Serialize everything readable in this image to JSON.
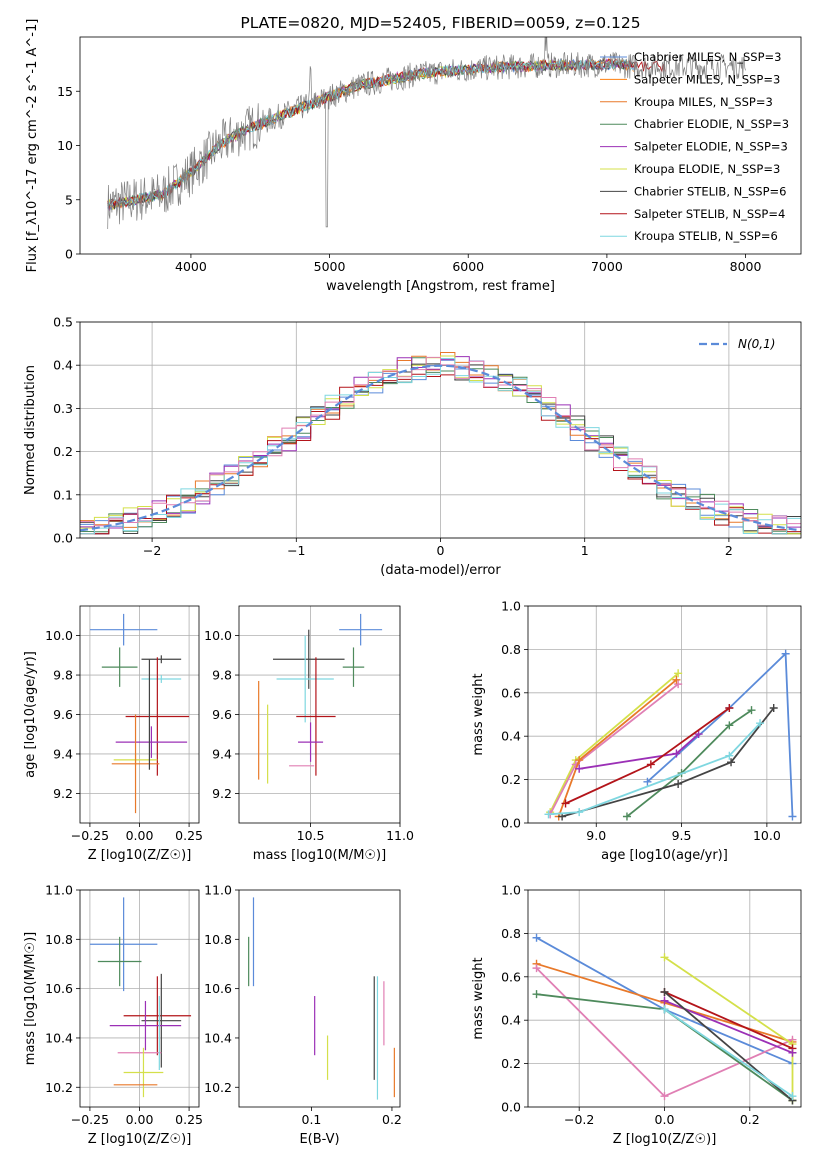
{
  "colors": {
    "chabrier_miles": "#5b8bd9",
    "salpeter_miles": "#ff7f0e",
    "kroupa_miles": "#e8792a",
    "chabrier_elodie": "#4e8a5c",
    "salpeter_elodie": "#9b30b6",
    "kroupa_elodie": "#d4e04a",
    "chabrier_stelib": "#444444",
    "salpeter_stelib": "#b3141a",
    "kroupa_stelib": "#7fd7e0",
    "pink": "#e07fb4",
    "normal_curve": "#5b8bd9"
  },
  "chart_data": [
    {
      "id": "spectrum",
      "type": "line",
      "title": "PLATE=0820, MJD=52405, FIBERID=0059, z=0.125",
      "xlabel": "wavelength [Angstrom, rest frame]",
      "ylabel": "Flux [f_λ10^-17 erg cm^-2 s^-1 A^-1]",
      "xlim": [
        3200,
        8400
      ],
      "ylim": [
        0,
        20
      ],
      "xticks": [
        "4000",
        "5000",
        "6000",
        "7000",
        "8000"
      ],
      "yticks": [
        "0",
        "5",
        "10",
        "15"
      ],
      "legend": [
        "Chabrier MILES, N_SSP=3",
        "Salpeter MILES, N_SSP=3",
        "Kroupa MILES, N_SSP=3",
        "Chabrier ELODIE, N_SSP=3",
        "Salpeter ELODIE, N_SSP=3",
        "Kroupa ELODIE, N_SSP=3",
        "Chabrier STELIB, N_SSP=6",
        "Salpeter STELIB, N_SSP=4",
        "Kroupa STELIB, N_SSP=6"
      ],
      "legend_position": "right",
      "continuum": [
        [
          3400,
          4.5
        ],
        [
          3600,
          5
        ],
        [
          3800,
          5.5
        ],
        [
          4000,
          7.5
        ],
        [
          4200,
          10
        ],
        [
          4400,
          11.5
        ],
        [
          4600,
          12.5
        ],
        [
          4800,
          13.5
        ],
        [
          5000,
          14.5
        ],
        [
          5200,
          15.5
        ],
        [
          5400,
          16
        ],
        [
          5600,
          16.5
        ],
        [
          5800,
          16.8
        ],
        [
          6000,
          17
        ],
        [
          6200,
          17.2
        ],
        [
          6400,
          17.3
        ],
        [
          6600,
          17.4
        ],
        [
          6800,
          17.4
        ],
        [
          7000,
          17.5
        ],
        [
          7200,
          17.3
        ]
      ]
    },
    {
      "id": "residuals",
      "type": "histogram",
      "xlabel": "(data-model)/error",
      "ylabel": "Normed distribution",
      "xlim": [
        -2.5,
        2.5
      ],
      "ylim": [
        0,
        0.5
      ],
      "xticks": [
        "−2",
        "−1",
        "0",
        "1",
        "2"
      ],
      "yticks": [
        "0.0",
        "0.1",
        "0.2",
        "0.3",
        "0.4",
        "0.5"
      ],
      "legend": [
        "N(0,1)"
      ],
      "legend_position": "top-right",
      "grid": true
    },
    {
      "id": "age_vs_Z",
      "type": "errorbar",
      "xlabel": "Z [log10(Z/Z☉)]",
      "ylabel": "age  [log10(age/yr)]",
      "xlim": [
        -0.3,
        0.3
      ],
      "ylim": [
        9.05,
        10.15
      ],
      "xticks": [
        "−0.25",
        "0.00",
        "0.25"
      ],
      "yticks": [
        "9.2",
        "9.4",
        "9.6",
        "9.8",
        "10.0"
      ],
      "grid": true,
      "points": [
        {
          "c": "chabrier_miles",
          "x": -0.08,
          "y": 10.03,
          "xe": 0.17,
          "ye": 0.08
        },
        {
          "c": "chabrier_elodie",
          "x": -0.1,
          "y": 9.84,
          "xe": 0.09,
          "ye": 0.1
        },
        {
          "c": "chabrier_stelib",
          "x": 0.11,
          "y": 9.88,
          "xe": 0.1,
          "ye": 0.02
        },
        {
          "c": "kroupa_stelib",
          "x": 0.11,
          "y": 9.78,
          "xe": 0.1,
          "ye": 0.02
        },
        {
          "c": "salpeter_stelib",
          "x": 0.09,
          "y": 9.59,
          "xe": 0.16,
          "ye": 0.3
        },
        {
          "c": "salpeter_elodie",
          "x": 0.06,
          "y": 9.46,
          "xe": 0.18,
          "ye": 0.08
        },
        {
          "c": "kroupa_elodie",
          "x": -0.02,
          "y": 9.37,
          "xe": 0.11,
          "ye": 0.03
        },
        {
          "c": "kroupa_miles",
          "x": -0.02,
          "y": 9.35,
          "xe": 0.12,
          "ye": 0.25
        },
        {
          "c": "chabrier_stelib",
          "x": 0.05,
          "y": 9.6,
          "xe": 0.0,
          "ye": 0.28
        }
      ]
    },
    {
      "id": "age_vs_mass",
      "type": "errorbar",
      "xlabel": "mass [log10(M/M☉)]",
      "ylabel": "",
      "xlim": [
        10.1,
        11.0
      ],
      "ylim": [
        9.05,
        10.15
      ],
      "xticks": [
        "10.5",
        "11.0"
      ],
      "yticks": [
        "9.2",
        "9.4",
        "9.6",
        "9.8",
        "10.0"
      ],
      "grid": true,
      "points": [
        {
          "c": "chabrier_miles",
          "x": 10.78,
          "y": 10.03,
          "xe": 0.12,
          "ye": 0.08
        },
        {
          "c": "chabrier_elodie",
          "x": 10.74,
          "y": 9.84,
          "xe": 0.06,
          "ye": 0.1
        },
        {
          "c": "chabrier_stelib",
          "x": 10.49,
          "y": 9.88,
          "xe": 0.2,
          "ye": 0.15
        },
        {
          "c": "kroupa_stelib",
          "x": 10.47,
          "y": 9.78,
          "xe": 0.16,
          "ye": 0.22
        },
        {
          "c": "salpeter_stelib",
          "x": 10.53,
          "y": 9.59,
          "xe": 0.11,
          "ye": 0.3
        },
        {
          "c": "salpeter_elodie",
          "x": 10.5,
          "y": 9.46,
          "xe": 0.07,
          "ye": 0.1
        },
        {
          "c": "kroupa_miles",
          "x": 10.21,
          "y": 9.52,
          "xe": 0.0,
          "ye": 0.25
        },
        {
          "c": "kroupa_elodie",
          "x": 10.26,
          "y": 9.45,
          "xe": 0.0,
          "ye": 0.2
        },
        {
          "c": "pink",
          "x": 10.45,
          "y": 9.34,
          "xe": 0.07,
          "ye": 0.0
        }
      ]
    },
    {
      "id": "massweight_vs_age",
      "type": "line",
      "xlabel": "age  [log10(age/yr)]",
      "ylabel": "mass weight",
      "xlim": [
        8.6,
        10.2
      ],
      "ylim": [
        0,
        1.0
      ],
      "xticks": [
        "9.0",
        "9.5",
        "10.0"
      ],
      "yticks": [
        "0.0",
        "0.2",
        "0.4",
        "0.6",
        "0.8",
        "1.0"
      ],
      "grid": true,
      "series": [
        {
          "c": "chabrier_miles",
          "x": [
            9.3,
            9.78,
            10.11,
            10.15
          ],
          "y": [
            0.19,
            0.53,
            0.78,
            0.03
          ]
        },
        {
          "c": "kroupa_elodie",
          "x": [
            8.73,
            8.88,
            9.48
          ],
          "y": [
            0.05,
            0.29,
            0.69
          ]
        },
        {
          "c": "pink",
          "x": [
            8.73,
            8.88,
            9.48
          ],
          "y": [
            0.04,
            0.27,
            0.64
          ]
        },
        {
          "c": "kroupa_miles",
          "x": [
            8.78,
            8.9,
            9.47
          ],
          "y": [
            0.03,
            0.29,
            0.66
          ]
        },
        {
          "c": "salpeter_elodie",
          "x": [
            8.9,
            9.47,
            9.6
          ],
          "y": [
            0.25,
            0.32,
            0.41
          ]
        },
        {
          "c": "salpeter_stelib",
          "x": [
            8.82,
            9.32,
            9.78
          ],
          "y": [
            0.09,
            0.27,
            0.53
          ]
        },
        {
          "c": "chabrier_elodie",
          "x": [
            9.18,
            9.5,
            9.78,
            9.91
          ],
          "y": [
            0.03,
            0.23,
            0.45,
            0.52
          ]
        },
        {
          "c": "chabrier_stelib",
          "x": [
            8.8,
            9.48,
            9.79,
            10.04
          ],
          "y": [
            0.03,
            0.18,
            0.28,
            0.53
          ]
        },
        {
          "c": "kroupa_stelib",
          "x": [
            8.72,
            8.9,
            9.78,
            9.96
          ],
          "y": [
            0.04,
            0.05,
            0.31,
            0.46
          ]
        }
      ]
    },
    {
      "id": "mass_vs_Z",
      "type": "errorbar",
      "xlabel": "Z [log10(Z/Z☉)]",
      "ylabel": "mass [log10(M/M☉)]",
      "xlim": [
        -0.3,
        0.3
      ],
      "ylim": [
        10.12,
        11.0
      ],
      "xticks": [
        "−0.25",
        "0.00",
        "0.25"
      ],
      "yticks": [
        "10.2",
        "10.4",
        "10.6",
        "10.8",
        "11.0"
      ],
      "grid": true,
      "points": [
        {
          "c": "chabrier_miles",
          "x": -0.08,
          "y": 10.78,
          "xe": 0.17,
          "ye": 0.19
        },
        {
          "c": "chabrier_elodie",
          "x": -0.1,
          "y": 10.71,
          "xe": 0.11,
          "ye": 0.1
        },
        {
          "c": "salpeter_stelib",
          "x": 0.09,
          "y": 10.49,
          "xe": 0.17,
          "ye": 0.16
        },
        {
          "c": "chabrier_stelib",
          "x": 0.11,
          "y": 10.47,
          "xe": 0.1,
          "ye": 0.19
        },
        {
          "c": "salpeter_elodie",
          "x": 0.03,
          "y": 10.45,
          "xe": 0.18,
          "ye": 0.1
        },
        {
          "c": "pink",
          "x": 0.0,
          "y": 10.34,
          "xe": 0.11,
          "ye": 0.0
        },
        {
          "c": "kroupa_elodie",
          "x": 0.02,
          "y": 10.26,
          "xe": 0.1,
          "ye": 0.1
        },
        {
          "c": "kroupa_miles",
          "x": -0.02,
          "y": 10.21,
          "xe": 0.11,
          "ye": 0.0
        },
        {
          "c": "kroupa_stelib",
          "x": 0.1,
          "y": 10.42,
          "xe": 0.0,
          "ye": 0.15
        }
      ]
    },
    {
      "id": "mass_vs_ebv",
      "type": "errorbar",
      "xlabel": "E(B-V)",
      "ylabel": "",
      "xlim": [
        0.01,
        0.21
      ],
      "ylim": [
        10.12,
        11.0
      ],
      "xticks": [
        "0.1",
        "0.2"
      ],
      "yticks": [
        "10.2",
        "10.4",
        "10.6",
        "10.8",
        "11.0"
      ],
      "points": [
        {
          "c": "chabrier_miles",
          "x": 0.028,
          "y": 10.79,
          "xe": 0.0,
          "ye": 0.18
        },
        {
          "c": "chabrier_elodie",
          "x": 0.022,
          "y": 10.71,
          "xe": 0.0,
          "ye": 0.1
        },
        {
          "c": "salpeter_elodie",
          "x": 0.104,
          "y": 10.45,
          "xe": 0.0,
          "ye": 0.12
        },
        {
          "c": "kroupa_elodie",
          "x": 0.12,
          "y": 10.32,
          "xe": 0.0,
          "ye": 0.09
        },
        {
          "c": "chabrier_stelib",
          "x": 0.178,
          "y": 10.44,
          "xe": 0.0,
          "ye": 0.21
        },
        {
          "c": "kroupa_stelib",
          "x": 0.182,
          "y": 10.4,
          "xe": 0.0,
          "ye": 0.25
        },
        {
          "c": "pink",
          "x": 0.19,
          "y": 10.5,
          "xe": 0.0,
          "ye": 0.13
        },
        {
          "c": "kroupa_miles",
          "x": 0.203,
          "y": 10.26,
          "xe": 0.0,
          "ye": 0.1
        }
      ]
    },
    {
      "id": "massweight_vs_Z",
      "type": "line",
      "xlabel": "Z [log10(Z/Z☉)]",
      "ylabel": "mass weight",
      "xlim": [
        -0.32,
        0.32
      ],
      "ylim": [
        0,
        1.0
      ],
      "xticks": [
        "−0.2",
        "0.0",
        "0.2"
      ],
      "yticks": [
        "0.0",
        "0.2",
        "0.4",
        "0.6",
        "0.8",
        "1.0"
      ],
      "grid": true,
      "series": [
        {
          "c": "chabrier_miles",
          "x": [
            -0.3,
            0.0,
            0.3
          ],
          "y": [
            0.78,
            0.45,
            0.2
          ]
        },
        {
          "c": "kroupa_miles",
          "x": [
            -0.3,
            0.0,
            0.3
          ],
          "y": [
            0.66,
            0.48,
            0.3
          ]
        },
        {
          "c": "pink",
          "x": [
            -0.3,
            0.0,
            0.3
          ],
          "y": [
            0.64,
            0.05,
            0.31
          ]
        },
        {
          "c": "chabrier_elodie",
          "x": [
            -0.3,
            0.0,
            0.3
          ],
          "y": [
            0.52,
            0.45,
            0.03
          ]
        },
        {
          "c": "kroupa_elodie",
          "x": [
            0.0,
            0.3,
            0.3
          ],
          "y": [
            0.69,
            0.29,
            0.03
          ]
        },
        {
          "c": "salpeter_stelib",
          "x": [
            0.0,
            0.3
          ],
          "y": [
            0.53,
            0.27
          ]
        },
        {
          "c": "salpeter_elodie",
          "x": [
            0.0,
            0.3
          ],
          "y": [
            0.49,
            0.25
          ]
        },
        {
          "c": "chabrier_stelib",
          "x": [
            0.0,
            0.3
          ],
          "y": [
            0.53,
            0.03
          ]
        },
        {
          "c": "kroupa_stelib",
          "x": [
            0.0,
            0.3
          ],
          "y": [
            0.45,
            0.05
          ]
        }
      ]
    }
  ]
}
